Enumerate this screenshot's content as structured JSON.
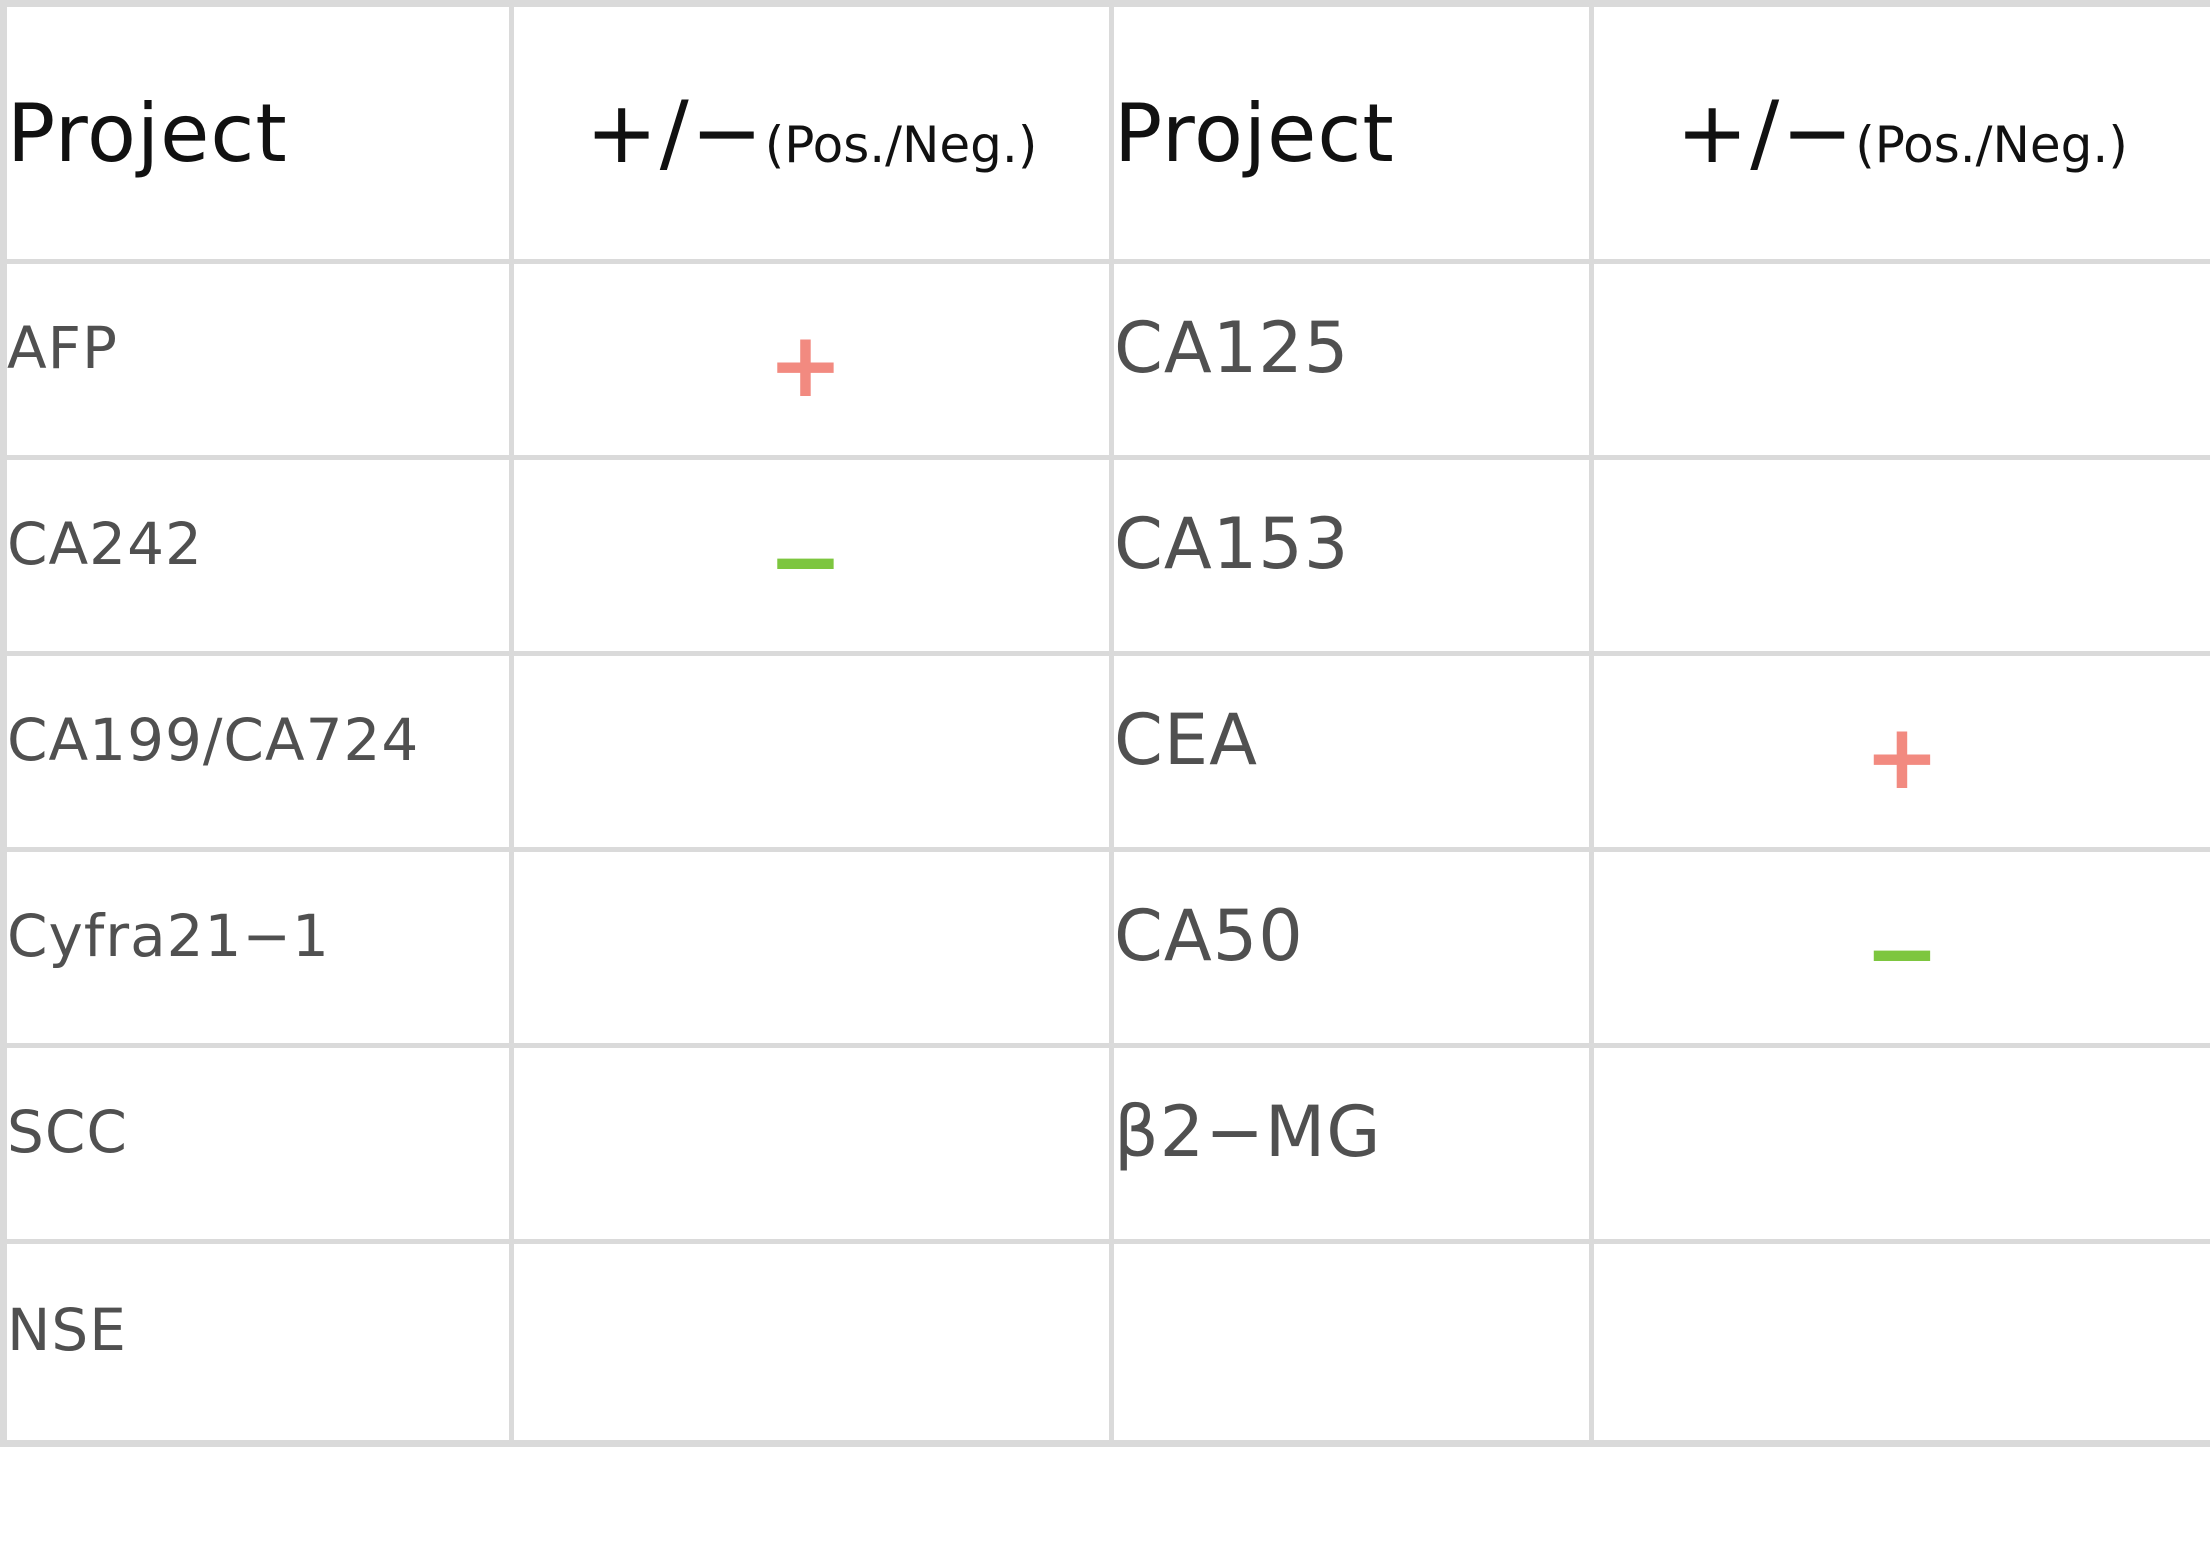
{
  "header": {
    "project_label": "Project",
    "sign_label": "+/−",
    "sign_sub_label": "(Pos./Neg.)"
  },
  "colors": {
    "positive": "#f28a80",
    "negative": "#7dc63f",
    "grid": "#dadada"
  },
  "rows": [
    {
      "left_name": "AFP",
      "left_result": "+",
      "right_name": "CA125",
      "right_result": ""
    },
    {
      "left_name": "CA242",
      "left_result": "−",
      "right_name": "CA153",
      "right_result": ""
    },
    {
      "left_name": "CA199/CA724",
      "left_result": "",
      "right_name": "CEA",
      "right_result": "+"
    },
    {
      "left_name": "Cyfra21−1",
      "left_result": "",
      "right_name": "CA50",
      "right_result": "−"
    },
    {
      "left_name": "SCC",
      "left_result": "",
      "right_name": "β2−MG",
      "right_result": ""
    },
    {
      "left_name": "NSE",
      "left_result": "",
      "right_name": "",
      "right_result": ""
    }
  ]
}
